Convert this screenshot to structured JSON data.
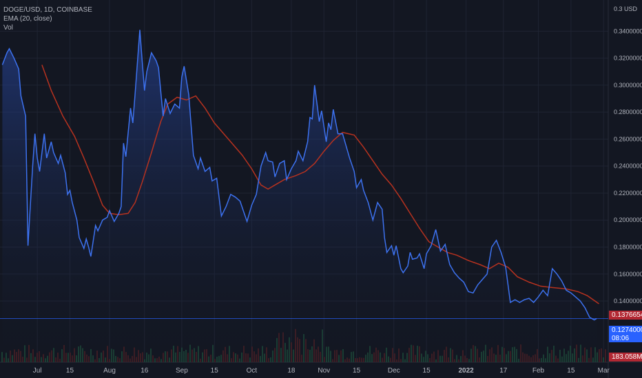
{
  "legend": {
    "symbol": "DOGE/USD, 1D, COINBASE",
    "ema": "EMA (20, close)",
    "vol": "Vol"
  },
  "colors": {
    "background": "#131722",
    "price_line": "#3d72f0",
    "price_fill": "#1c3a8a",
    "ema_line": "#b8321f",
    "grid": "#1f2433",
    "volume_up": "#1e4a3a",
    "volume_down": "#4a1f26",
    "badge_red": "#b22833",
    "badge_blue": "#2962ff"
  },
  "badges": {
    "ema_value": "0.13766543",
    "price_value": "0.12740000",
    "price_countdown": "08:06",
    "volume_value": "183.058M"
  },
  "chart_data": {
    "type": "line",
    "title": "DOGE/USD, 1D, COINBASE",
    "y_unit_label": "0.3 USD",
    "ylim": [
      0.112,
      0.358
    ],
    "y_ticks": [
      "0.14000000",
      "0.16000000",
      "0.18000000",
      "0.20000000",
      "0.22000000",
      "0.24000000",
      "0.26000000",
      "0.28000000",
      "0.30000000",
      "0.32000000",
      "0.34000000"
    ],
    "y_tick_values": [
      0.14,
      0.16,
      0.18,
      0.2,
      0.22,
      0.24,
      0.26,
      0.28,
      0.3,
      0.32,
      0.34
    ],
    "x_ticks": [
      {
        "label": "Jul",
        "date": "2021-07-01"
      },
      {
        "label": "15",
        "date": "2021-07-15"
      },
      {
        "label": "Aug",
        "date": "2021-08-01"
      },
      {
        "label": "16",
        "date": "2021-08-16"
      },
      {
        "label": "Sep",
        "date": "2021-09-01"
      },
      {
        "label": "15",
        "date": "2021-09-15"
      },
      {
        "label": "Oct",
        "date": "2021-10-01"
      },
      {
        "label": "18",
        "date": "2021-10-18"
      },
      {
        "label": "Nov",
        "date": "2021-11-01"
      },
      {
        "label": "15",
        "date": "2021-11-15"
      },
      {
        "label": "Dec",
        "date": "2021-12-01"
      },
      {
        "label": "15",
        "date": "2021-12-15"
      },
      {
        "label": "2022",
        "date": "2022-01-01"
      },
      {
        "label": "17",
        "date": "2022-01-17"
      },
      {
        "label": "Feb",
        "date": "2022-02-01"
      },
      {
        "label": "15",
        "date": "2022-02-15"
      },
      {
        "label": "Mar",
        "date": "2022-03-01"
      }
    ],
    "grid": true,
    "series": [
      {
        "name": "DOGE/USD",
        "points": [
          [
            "2021-06-16",
            0.315
          ],
          [
            "2021-06-18",
            0.324
          ],
          [
            "2021-06-19",
            0.327
          ],
          [
            "2021-06-21",
            0.32
          ],
          [
            "2021-06-23",
            0.312
          ],
          [
            "2021-06-24",
            0.292
          ],
          [
            "2021-06-26",
            0.277
          ],
          [
            "2021-06-27",
            0.181
          ],
          [
            "2021-06-29",
            0.24
          ],
          [
            "2021-06-30",
            0.264
          ],
          [
            "2021-07-01",
            0.246
          ],
          [
            "2021-07-02",
            0.236
          ],
          [
            "2021-07-04",
            0.264
          ],
          [
            "2021-07-05",
            0.246
          ],
          [
            "2021-07-07",
            0.258
          ],
          [
            "2021-07-08",
            0.25
          ],
          [
            "2021-07-10",
            0.242
          ],
          [
            "2021-07-11",
            0.248
          ],
          [
            "2021-07-13",
            0.235
          ],
          [
            "2021-07-14",
            0.219
          ],
          [
            "2021-07-15",
            0.222
          ],
          [
            "2021-07-16",
            0.213
          ],
          [
            "2021-07-18",
            0.2
          ],
          [
            "2021-07-19",
            0.187
          ],
          [
            "2021-07-21",
            0.179
          ],
          [
            "2021-07-22",
            0.186
          ],
          [
            "2021-07-23",
            0.18
          ],
          [
            "2021-07-24",
            0.173
          ],
          [
            "2021-07-26",
            0.196
          ],
          [
            "2021-07-27",
            0.192
          ],
          [
            "2021-07-29",
            0.2
          ],
          [
            "2021-07-31",
            0.202
          ],
          [
            "2021-08-01",
            0.207
          ],
          [
            "2021-08-02",
            0.203
          ],
          [
            "2021-08-03",
            0.199
          ],
          [
            "2021-08-05",
            0.205
          ],
          [
            "2021-08-06",
            0.21
          ],
          [
            "2021-08-07",
            0.257
          ],
          [
            "2021-08-08",
            0.247
          ],
          [
            "2021-08-10",
            0.283
          ],
          [
            "2021-08-11",
            0.272
          ],
          [
            "2021-08-12",
            0.294
          ],
          [
            "2021-08-14",
            0.341
          ],
          [
            "2021-08-15",
            0.318
          ],
          [
            "2021-08-16",
            0.296
          ],
          [
            "2021-08-17",
            0.31
          ],
          [
            "2021-08-19",
            0.324
          ],
          [
            "2021-08-21",
            0.318
          ],
          [
            "2021-08-22",
            0.313
          ],
          [
            "2021-08-24",
            0.277
          ],
          [
            "2021-08-25",
            0.29
          ],
          [
            "2021-08-27",
            0.279
          ],
          [
            "2021-08-29",
            0.286
          ],
          [
            "2021-08-31",
            0.283
          ],
          [
            "2021-09-01",
            0.306
          ],
          [
            "2021-09-02",
            0.314
          ],
          [
            "2021-09-04",
            0.293
          ],
          [
            "2021-09-06",
            0.248
          ],
          [
            "2021-09-08",
            0.238
          ],
          [
            "2021-09-09",
            0.246
          ],
          [
            "2021-09-11",
            0.236
          ],
          [
            "2021-09-13",
            0.239
          ],
          [
            "2021-09-14",
            0.229
          ],
          [
            "2021-09-16",
            0.231
          ],
          [
            "2021-09-18",
            0.203
          ],
          [
            "2021-09-20",
            0.21
          ],
          [
            "2021-09-22",
            0.219
          ],
          [
            "2021-09-24",
            0.217
          ],
          [
            "2021-09-26",
            0.214
          ],
          [
            "2021-09-28",
            0.204
          ],
          [
            "2021-09-29",
            0.199
          ],
          [
            "2021-10-01",
            0.211
          ],
          [
            "2021-10-03",
            0.219
          ],
          [
            "2021-10-05",
            0.24
          ],
          [
            "2021-10-07",
            0.25
          ],
          [
            "2021-10-08",
            0.244
          ],
          [
            "2021-10-10",
            0.243
          ],
          [
            "2021-10-11",
            0.232
          ],
          [
            "2021-10-13",
            0.242
          ],
          [
            "2021-10-15",
            0.244
          ],
          [
            "2021-10-16",
            0.23
          ],
          [
            "2021-10-18",
            0.238
          ],
          [
            "2021-10-20",
            0.244
          ],
          [
            "2021-10-21",
            0.251
          ],
          [
            "2021-10-23",
            0.244
          ],
          [
            "2021-10-25",
            0.258
          ],
          [
            "2021-10-26",
            0.276
          ],
          [
            "2021-10-27",
            0.275
          ],
          [
            "2021-10-28",
            0.3
          ],
          [
            "2021-10-30",
            0.273
          ],
          [
            "2021-10-31",
            0.281
          ],
          [
            "2021-11-02",
            0.258
          ],
          [
            "2021-11-03",
            0.272
          ],
          [
            "2021-11-04",
            0.267
          ],
          [
            "2021-11-05",
            0.282
          ],
          [
            "2021-11-07",
            0.264
          ],
          [
            "2021-11-09",
            0.264
          ],
          [
            "2021-11-10",
            0.258
          ],
          [
            "2021-11-12",
            0.246
          ],
          [
            "2021-11-14",
            0.236
          ],
          [
            "2021-11-15",
            0.224
          ],
          [
            "2021-11-17",
            0.23
          ],
          [
            "2021-11-18",
            0.222
          ],
          [
            "2021-11-20",
            0.213
          ],
          [
            "2021-11-22",
            0.2
          ],
          [
            "2021-11-24",
            0.213
          ],
          [
            "2021-11-26",
            0.208
          ],
          [
            "2021-11-27",
            0.187
          ],
          [
            "2021-11-28",
            0.176
          ],
          [
            "2021-11-30",
            0.181
          ],
          [
            "2021-12-01",
            0.174
          ],
          [
            "2021-12-02",
            0.181
          ],
          [
            "2021-12-04",
            0.164
          ],
          [
            "2021-12-05",
            0.161
          ],
          [
            "2021-12-07",
            0.166
          ],
          [
            "2021-12-08",
            0.176
          ],
          [
            "2021-12-09",
            0.171
          ],
          [
            "2021-12-11",
            0.172
          ],
          [
            "2021-12-12",
            0.175
          ],
          [
            "2021-12-14",
            0.164
          ],
          [
            "2021-12-15",
            0.175
          ],
          [
            "2021-12-17",
            0.181
          ],
          [
            "2021-12-19",
            0.193
          ],
          [
            "2021-12-21",
            0.177
          ],
          [
            "2021-12-23",
            0.182
          ],
          [
            "2021-12-25",
            0.167
          ],
          [
            "2021-12-27",
            0.161
          ],
          [
            "2021-12-29",
            0.157
          ],
          [
            "2021-12-31",
            0.154
          ],
          [
            "2022-01-02",
            0.147
          ],
          [
            "2022-01-04",
            0.146
          ],
          [
            "2022-01-06",
            0.152
          ],
          [
            "2022-01-08",
            0.156
          ],
          [
            "2022-01-10",
            0.16
          ],
          [
            "2022-01-12",
            0.18
          ],
          [
            "2022-01-14",
            0.185
          ],
          [
            "2022-01-16",
            0.176
          ],
          [
            "2022-01-18",
            0.165
          ],
          [
            "2022-01-20",
            0.139
          ],
          [
            "2022-01-22",
            0.141
          ],
          [
            "2022-01-24",
            0.139
          ],
          [
            "2022-01-26",
            0.141
          ],
          [
            "2022-01-28",
            0.142
          ],
          [
            "2022-01-30",
            0.139
          ],
          [
            "2022-02-01",
            0.143
          ],
          [
            "2022-02-03",
            0.148
          ],
          [
            "2022-02-05",
            0.144
          ],
          [
            "2022-02-07",
            0.164
          ],
          [
            "2022-02-09",
            0.16
          ],
          [
            "2022-02-11",
            0.155
          ],
          [
            "2022-02-13",
            0.148
          ],
          [
            "2022-02-15",
            0.146
          ],
          [
            "2022-02-17",
            0.143
          ],
          [
            "2022-02-19",
            0.14
          ],
          [
            "2022-02-21",
            0.135
          ],
          [
            "2022-02-23",
            0.128
          ],
          [
            "2022-02-25",
            0.126
          ],
          [
            "2022-02-26",
            0.127
          ]
        ]
      },
      {
        "name": "EMA (20, close)",
        "points": [
          [
            "2021-07-03",
            0.315
          ],
          [
            "2021-07-07",
            0.296
          ],
          [
            "2021-07-12",
            0.277
          ],
          [
            "2021-07-17",
            0.262
          ],
          [
            "2021-07-21",
            0.246
          ],
          [
            "2021-07-25",
            0.229
          ],
          [
            "2021-07-29",
            0.211
          ],
          [
            "2021-08-01",
            0.205
          ],
          [
            "2021-08-05",
            0.204
          ],
          [
            "2021-08-09",
            0.205
          ],
          [
            "2021-08-12",
            0.213
          ],
          [
            "2021-08-15",
            0.228
          ],
          [
            "2021-08-19",
            0.25
          ],
          [
            "2021-08-23",
            0.273
          ],
          [
            "2021-08-26",
            0.286
          ],
          [
            "2021-08-30",
            0.291
          ],
          [
            "2021-09-03",
            0.289
          ],
          [
            "2021-09-07",
            0.292
          ],
          [
            "2021-09-11",
            0.283
          ],
          [
            "2021-09-15",
            0.272
          ],
          [
            "2021-09-19",
            0.264
          ],
          [
            "2021-09-23",
            0.256
          ],
          [
            "2021-09-27",
            0.248
          ],
          [
            "2021-10-01",
            0.238
          ],
          [
            "2021-10-05",
            0.226
          ],
          [
            "2021-10-08",
            0.223
          ],
          [
            "2021-10-11",
            0.226
          ],
          [
            "2021-10-15",
            0.23
          ],
          [
            "2021-10-20",
            0.233
          ],
          [
            "2021-10-24",
            0.236
          ],
          [
            "2021-10-28",
            0.242
          ],
          [
            "2021-11-01",
            0.251
          ],
          [
            "2021-11-05",
            0.259
          ],
          [
            "2021-11-09",
            0.265
          ],
          [
            "2021-11-14",
            0.263
          ],
          [
            "2021-11-18",
            0.254
          ],
          [
            "2021-11-22",
            0.244
          ],
          [
            "2021-11-26",
            0.234
          ],
          [
            "2021-11-30",
            0.226
          ],
          [
            "2021-12-04",
            0.216
          ],
          [
            "2021-12-08",
            0.205
          ],
          [
            "2021-12-12",
            0.194
          ],
          [
            "2021-12-16",
            0.184
          ],
          [
            "2021-12-20",
            0.18
          ],
          [
            "2021-12-24",
            0.176
          ],
          [
            "2021-12-28",
            0.174
          ],
          [
            "2022-01-02",
            0.17
          ],
          [
            "2022-01-07",
            0.167
          ],
          [
            "2022-01-11",
            0.164
          ],
          [
            "2022-01-15",
            0.168
          ],
          [
            "2022-01-19",
            0.165
          ],
          [
            "2022-01-23",
            0.158
          ],
          [
            "2022-01-28",
            0.154
          ],
          [
            "2022-02-02",
            0.151
          ],
          [
            "2022-02-07",
            0.15
          ],
          [
            "2022-02-13",
            0.149
          ],
          [
            "2022-02-18",
            0.147
          ],
          [
            "2022-02-22",
            0.144
          ],
          [
            "2022-02-27",
            0.138
          ]
        ]
      }
    ]
  }
}
